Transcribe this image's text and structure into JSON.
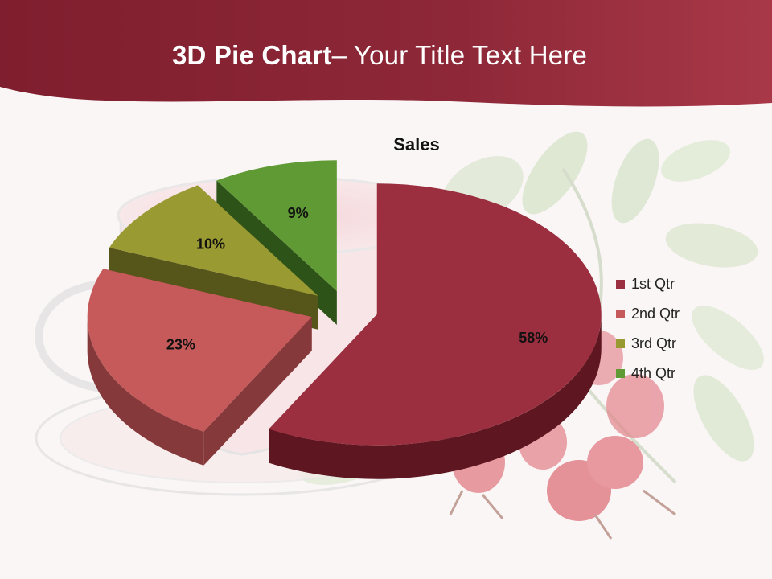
{
  "header": {
    "title_bold": "3D Pie Chart",
    "title_rest": "– Your Title Text Here"
  },
  "chart_data": {
    "type": "pie",
    "title": "Sales",
    "legend_position": "right",
    "three_d": true,
    "exploded": true,
    "slices": [
      {
        "name": "1st Qtr",
        "value": 58,
        "label": "58%",
        "color": "#9b2f3f",
        "side_color": "#5e1620"
      },
      {
        "name": "2nd Qtr",
        "value": 23,
        "label": "23%",
        "color": "#c65a5a",
        "side_color": "#86393b"
      },
      {
        "name": "3rd Qtr",
        "value": 10,
        "label": "10%",
        "color": "#9a9a32",
        "side_color": "#56561a"
      },
      {
        "name": "4th Qtr",
        "value": 9,
        "label": "9%",
        "color": "#5f9a35",
        "side_color": "#2e5319"
      }
    ]
  },
  "colors": {
    "header_band": "#8e2838",
    "background": "#faf6f6"
  }
}
